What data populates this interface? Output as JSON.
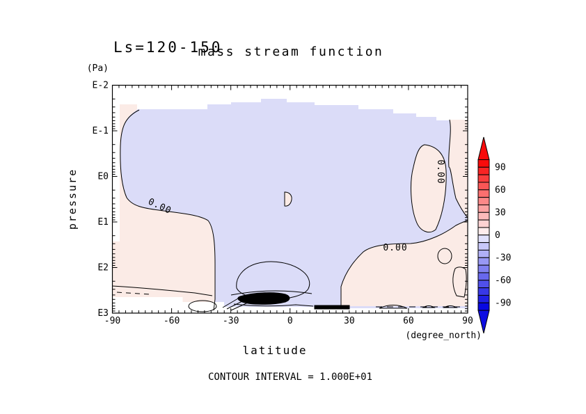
{
  "title_left": "Ls=120-150",
  "title_main": "mass stream function",
  "footer_note": "CONTOUR INTERVAL = 1.000E+01",
  "axes": {
    "y": {
      "label": "pressure",
      "unit": "(Pa)",
      "tick_labels": [
        "E-2",
        "E-1",
        "E0",
        "E1",
        "E2",
        "E3"
      ]
    },
    "x": {
      "label": "latitude",
      "unit": "(degree_north)",
      "tick_labels": [
        "-90",
        "-60",
        "-30",
        "0",
        "30",
        "60",
        "90"
      ]
    }
  },
  "plot": {
    "contour_labels": [
      "0.00",
      "0.00",
      "0.00"
    ],
    "x_minor_divisions": 9
  },
  "colorbar": {
    "labels": [
      "90",
      "60",
      "30",
      "0",
      "-30",
      "-60",
      "-90"
    ],
    "segment_colors": [
      "#f80b0b",
      "#f92424",
      "#fa3d3d",
      "#fb5656",
      "#fb6f6f",
      "#fc8888",
      "#fca1a1",
      "#fdbaba",
      "#fdd3d3",
      "#feecec",
      "#e0e0fc",
      "#c8c8f9",
      "#b0b0f6",
      "#9898f3",
      "#8080f0",
      "#6868ed",
      "#5050ea",
      "#3838e7",
      "#2020e4",
      "#0808e1"
    ],
    "top_arrow_color": "#f80b0b",
    "bottom_arrow_color": "#0d0de2"
  },
  "colors": {
    "ink": "#000000",
    "pale_pink": "#fbebe6",
    "pale_blue": "#dbdcf8",
    "mid_blue": "#b3b9ee"
  },
  "chart_data": {
    "type": "contour",
    "title": "mass stream function",
    "subtitle": "Ls=120-150",
    "xlabel": "latitude (degree_north)",
    "ylabel": "pressure (Pa)",
    "x_range": [
      -90,
      90
    ],
    "x_ticks": [
      -90,
      -60,
      -30,
      0,
      30,
      60,
      90
    ],
    "y_scale": "log",
    "y_ticks_pa": [
      0.01,
      0.1,
      1,
      10,
      100,
      1000
    ],
    "y_tick_labels": [
      "E-2",
      "E-1",
      "E0",
      "E1",
      "E2",
      "E3"
    ],
    "contour_interval": 10,
    "zero_contour_label": "0.00",
    "colorbar": {
      "min": -100,
      "max": 100,
      "step": 10,
      "labeled_levels": [
        90,
        60,
        30,
        0,
        -30,
        -60,
        -90
      ],
      "palette": "blue-white-red"
    },
    "features": [
      {
        "region": "most of domain, lat -75..85, p ~0.05..300 Pa",
        "value_range": [
          -10,
          0
        ],
        "appearance": "pale blue, bounded by 0.00 contour"
      },
      {
        "region": "south polar column, lat -90..-78, p ~0.05..600 Pa",
        "value_range": [
          0,
          10
        ],
        "appearance": "pale pink"
      },
      {
        "region": "lower atmosphere, lat 5..90, p ~100..900 Pa",
        "value_range": [
          0,
          10
        ],
        "appearance": "pale pink"
      },
      {
        "region": "cell core, lat -30..0, p ~300..900 Pa",
        "value_range": [
          -20,
          -10
        ],
        "appearance": "medium blue closed contour"
      },
      {
        "region": "island, lat 55..75, p ~0.5..30 Pa",
        "value_range": [
          0,
          10
        ],
        "appearance": "pale pink island with 0.00 contour"
      },
      {
        "region": "north edge strip, lat 85..90, p ~0.05..10 Pa",
        "value_range": [
          0,
          10
        ],
        "appearance": "pale pink strip"
      },
      {
        "region": "near-surface, lat -28..8, p ~700..1000 Pa",
        "value_range": [
          -60,
          60
        ],
        "appearance": "tight bundle of black contours"
      },
      {
        "region": "below terrain / no data at bottom and above ~0.03 Pa",
        "value_range": null,
        "appearance": "white"
      }
    ]
  }
}
